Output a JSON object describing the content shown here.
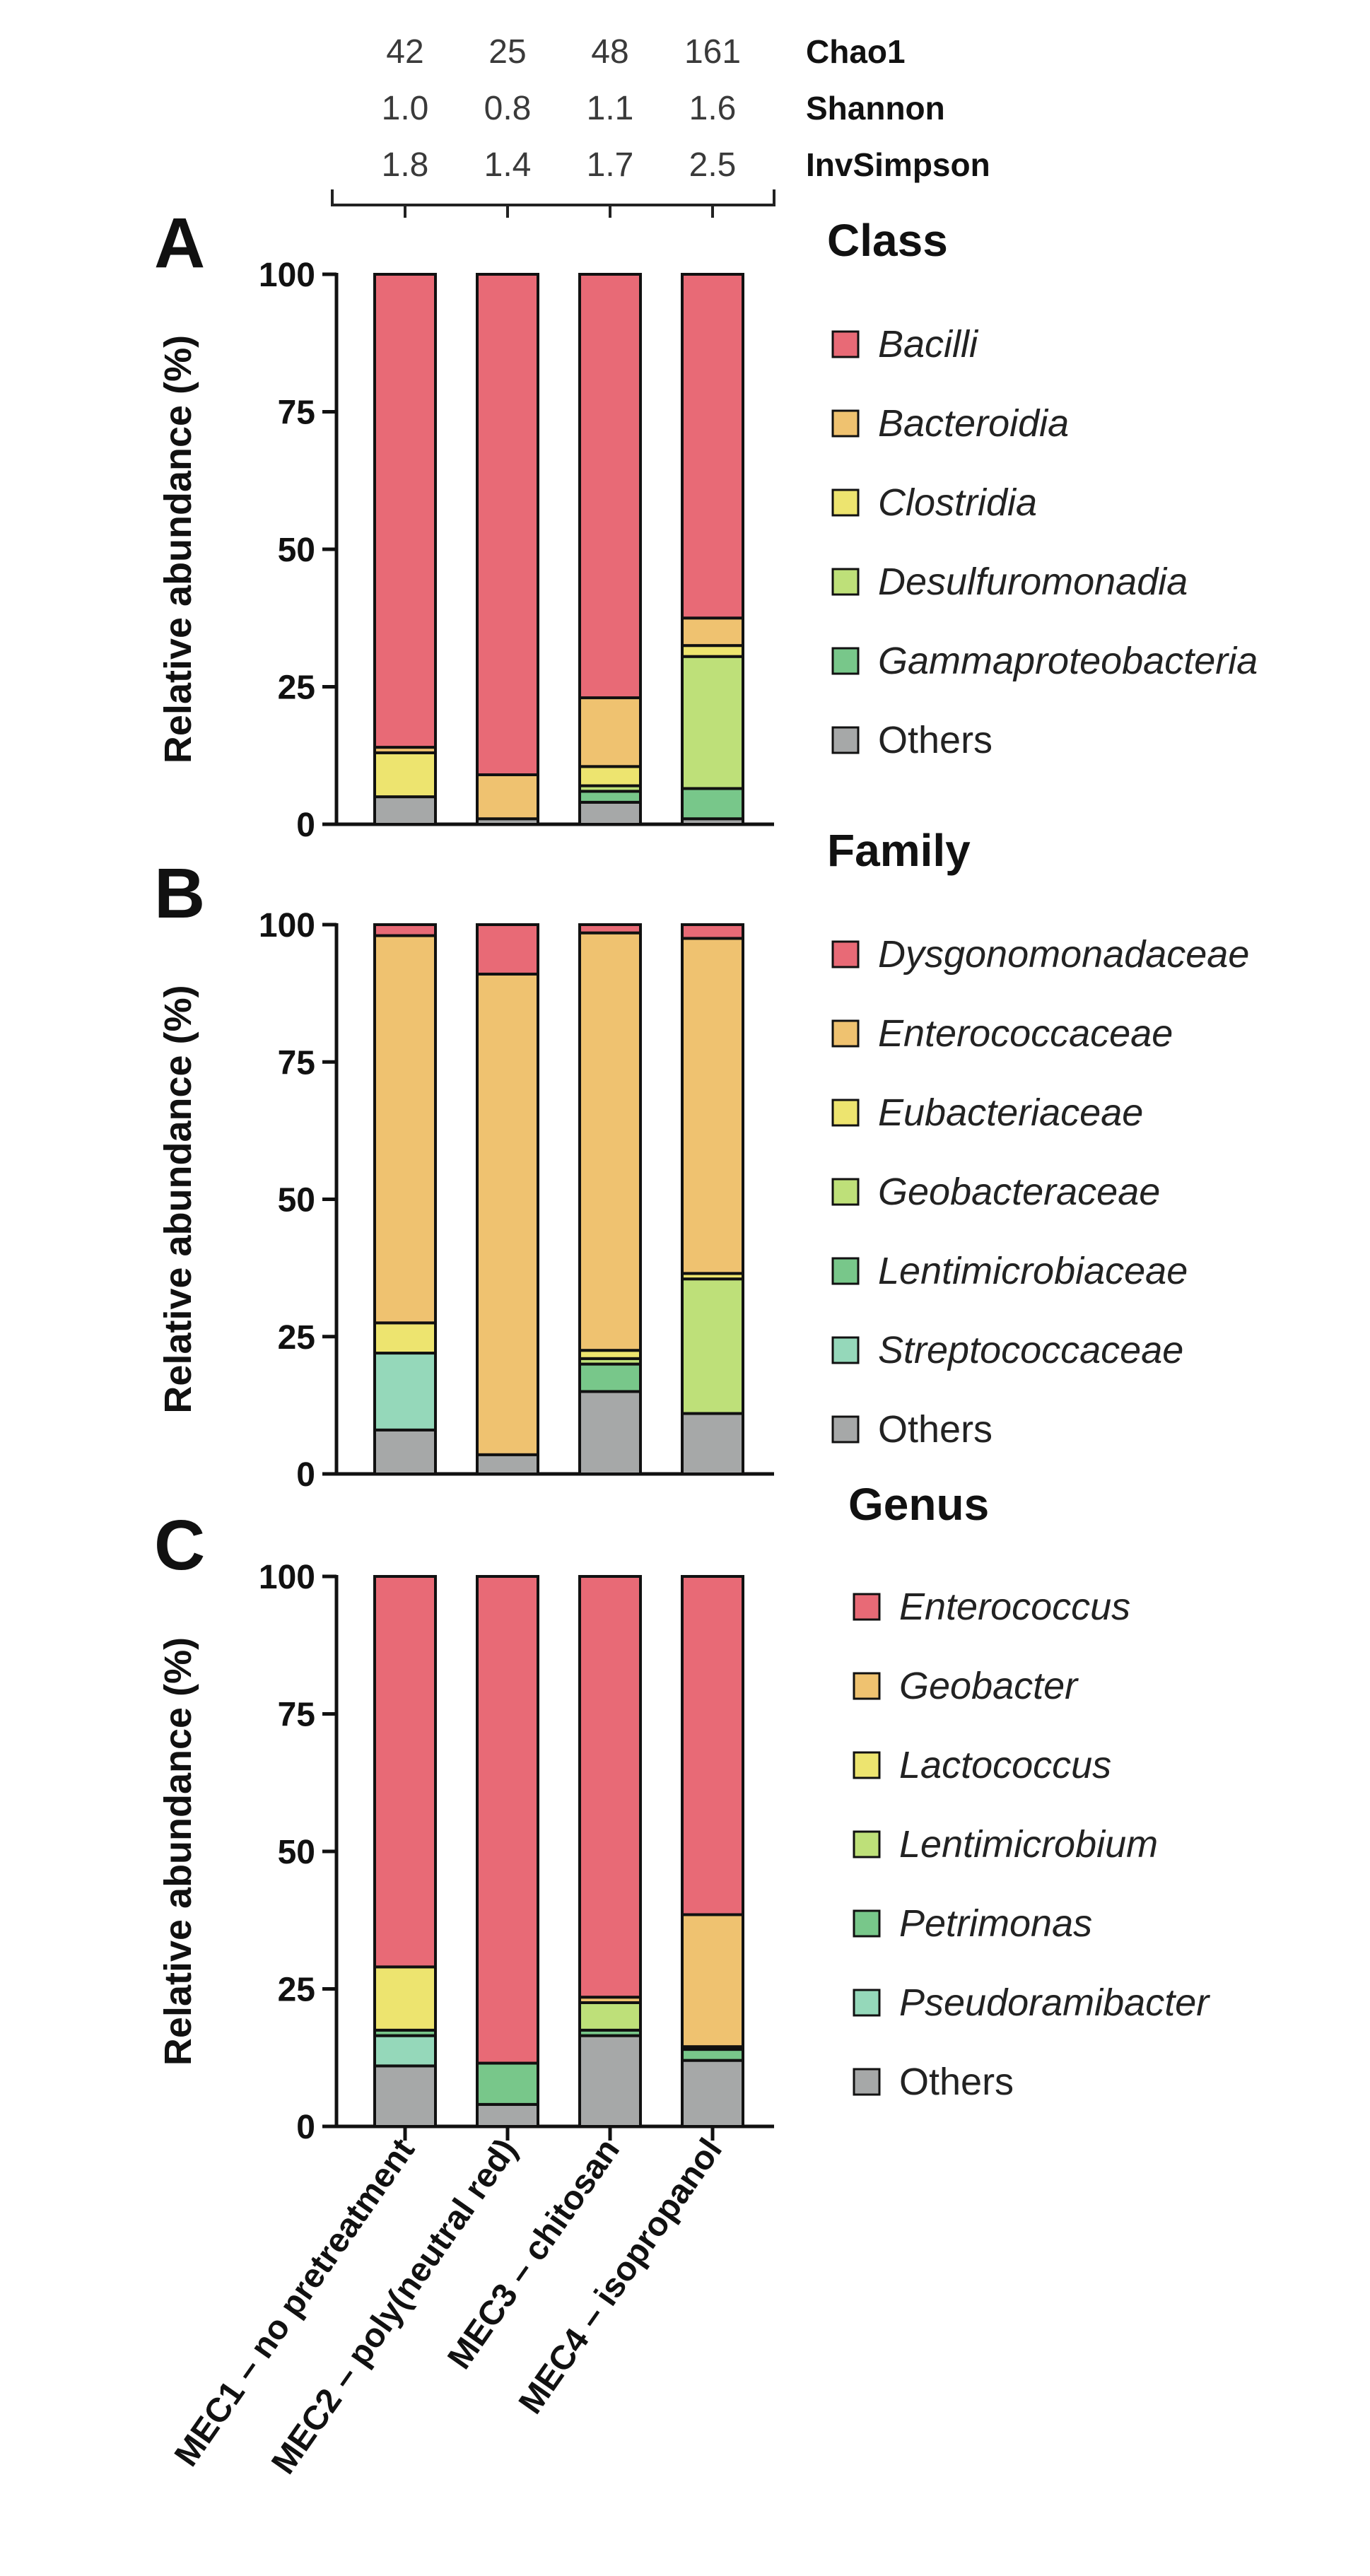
{
  "diversity": {
    "metrics": [
      {
        "name": "Chao1",
        "values": [
          "42",
          "25",
          "48",
          "161"
        ]
      },
      {
        "name": "Shannon",
        "values": [
          "1.0",
          "0.8",
          "1.1",
          "1.6"
        ]
      },
      {
        "name": "InvSimpson",
        "values": [
          "1.8",
          "1.4",
          "1.7",
          "2.5"
        ]
      }
    ]
  },
  "chart_data": [
    {
      "type": "bar",
      "stacked": true,
      "panel": "A",
      "legend_title": "Class",
      "ylabel": "Relative abundance (%)",
      "ylim": [
        0,
        100
      ],
      "yticks": [
        0,
        25,
        50,
        75,
        100
      ],
      "categories": [
        "MEC1 – no pretreatment",
        "MEC2 – poly(neutral red)",
        "MEC3 – chitosan",
        "MEC4 – isopropanol"
      ],
      "series": [
        {
          "name": "Others",
          "italic": false,
          "color": "#a6a8a8",
          "values": [
            5,
            1,
            4,
            1
          ]
        },
        {
          "name": "Gammaproteobacteria",
          "italic": true,
          "color": "#78c78a",
          "values": [
            0,
            0,
            2,
            5.5
          ]
        },
        {
          "name": "Desulfuromonadia",
          "italic": true,
          "color": "#bee079",
          "values": [
            0,
            0,
            1,
            24
          ]
        },
        {
          "name": "Clostridia",
          "italic": true,
          "color": "#ede46f",
          "values": [
            8,
            0,
            3.5,
            2
          ]
        },
        {
          "name": "Bacteroidia",
          "italic": true,
          "color": "#efc270",
          "values": [
            1,
            8,
            12.5,
            5
          ]
        },
        {
          "name": "Bacilli",
          "italic": true,
          "color": "#e86a76",
          "values": [
            86,
            91,
            77,
            62.5
          ]
        }
      ],
      "legend_order": [
        "Bacilli",
        "Bacteroidia",
        "Clostridia",
        "Desulfuromonadia",
        "Gammaproteobacteria",
        "Others"
      ]
    },
    {
      "type": "bar",
      "stacked": true,
      "panel": "B",
      "legend_title": "Family",
      "ylabel": "Relative abundance (%)",
      "ylim": [
        0,
        100
      ],
      "yticks": [
        0,
        25,
        50,
        75,
        100
      ],
      "categories": [
        "MEC1 – no pretreatment",
        "MEC2 – poly(neutral red)",
        "MEC3 – chitosan",
        "MEC4 – isopropanol"
      ],
      "series": [
        {
          "name": "Others",
          "italic": false,
          "color": "#a6a8a8",
          "values": [
            8,
            3.5,
            15,
            11
          ]
        },
        {
          "name": "Streptococcaceae",
          "italic": true,
          "color": "#95d8ba",
          "values": [
            14,
            0,
            0,
            0
          ]
        },
        {
          "name": "Lentimicrobiaceae",
          "italic": true,
          "color": "#78c78a",
          "values": [
            0,
            0,
            5,
            0
          ]
        },
        {
          "name": "Geobacteraceae",
          "italic": true,
          "color": "#bee079",
          "values": [
            0,
            0,
            1,
            24.5
          ]
        },
        {
          "name": "Eubacteriaceae",
          "italic": true,
          "color": "#ede46f",
          "values": [
            5.5,
            0,
            1.5,
            1
          ]
        },
        {
          "name": "Enterococcaceae",
          "italic": true,
          "color": "#efc270",
          "values": [
            70.5,
            87.5,
            76,
            61
          ]
        },
        {
          "name": "Dysgonomonadaceae",
          "italic": true,
          "color": "#e86a76",
          "values": [
            2,
            9,
            1.5,
            2.5
          ]
        }
      ],
      "legend_order": [
        "Dysgonomonadaceae",
        "Enterococcaceae",
        "Eubacteriaceae",
        "Geobacteraceae",
        "Lentimicrobiaceae",
        "Streptococcaceae",
        "Others"
      ]
    },
    {
      "type": "bar",
      "stacked": true,
      "panel": "C",
      "legend_title": "Genus",
      "ylabel": "Relative abundance (%)",
      "ylim": [
        0,
        100
      ],
      "yticks": [
        0,
        25,
        50,
        75,
        100
      ],
      "categories": [
        "MEC1 – no pretreatment",
        "MEC2 – poly(neutral red)",
        "MEC3 – chitosan",
        "MEC4 – isopropanol"
      ],
      "series": [
        {
          "name": "Others",
          "italic": false,
          "color": "#a6a8a8",
          "values": [
            11,
            4,
            16.5,
            12
          ]
        },
        {
          "name": "Pseudoramibacter",
          "italic": true,
          "color": "#95d8ba",
          "values": [
            5.5,
            0,
            0,
            0
          ]
        },
        {
          "name": "Petrimonas",
          "italic": true,
          "color": "#78c78a",
          "values": [
            1,
            7.5,
            1,
            2
          ]
        },
        {
          "name": "Lentimicrobium",
          "italic": true,
          "color": "#bee079",
          "values": [
            0,
            0,
            5,
            0
          ]
        },
        {
          "name": "Lactococcus",
          "italic": true,
          "color": "#ede46f",
          "values": [
            11.5,
            0,
            0,
            0.5
          ]
        },
        {
          "name": "Geobacter",
          "italic": true,
          "color": "#efc270",
          "values": [
            0,
            0,
            1,
            24
          ]
        },
        {
          "name": "Enterococcus",
          "italic": true,
          "color": "#e86a76",
          "values": [
            71,
            88.5,
            76.5,
            61.5
          ]
        }
      ],
      "legend_order": [
        "Enterococcus",
        "Geobacter",
        "Lactococcus",
        "Lentimicrobium",
        "Petrimonas",
        "Pseudoramibacter",
        "Others"
      ]
    }
  ]
}
